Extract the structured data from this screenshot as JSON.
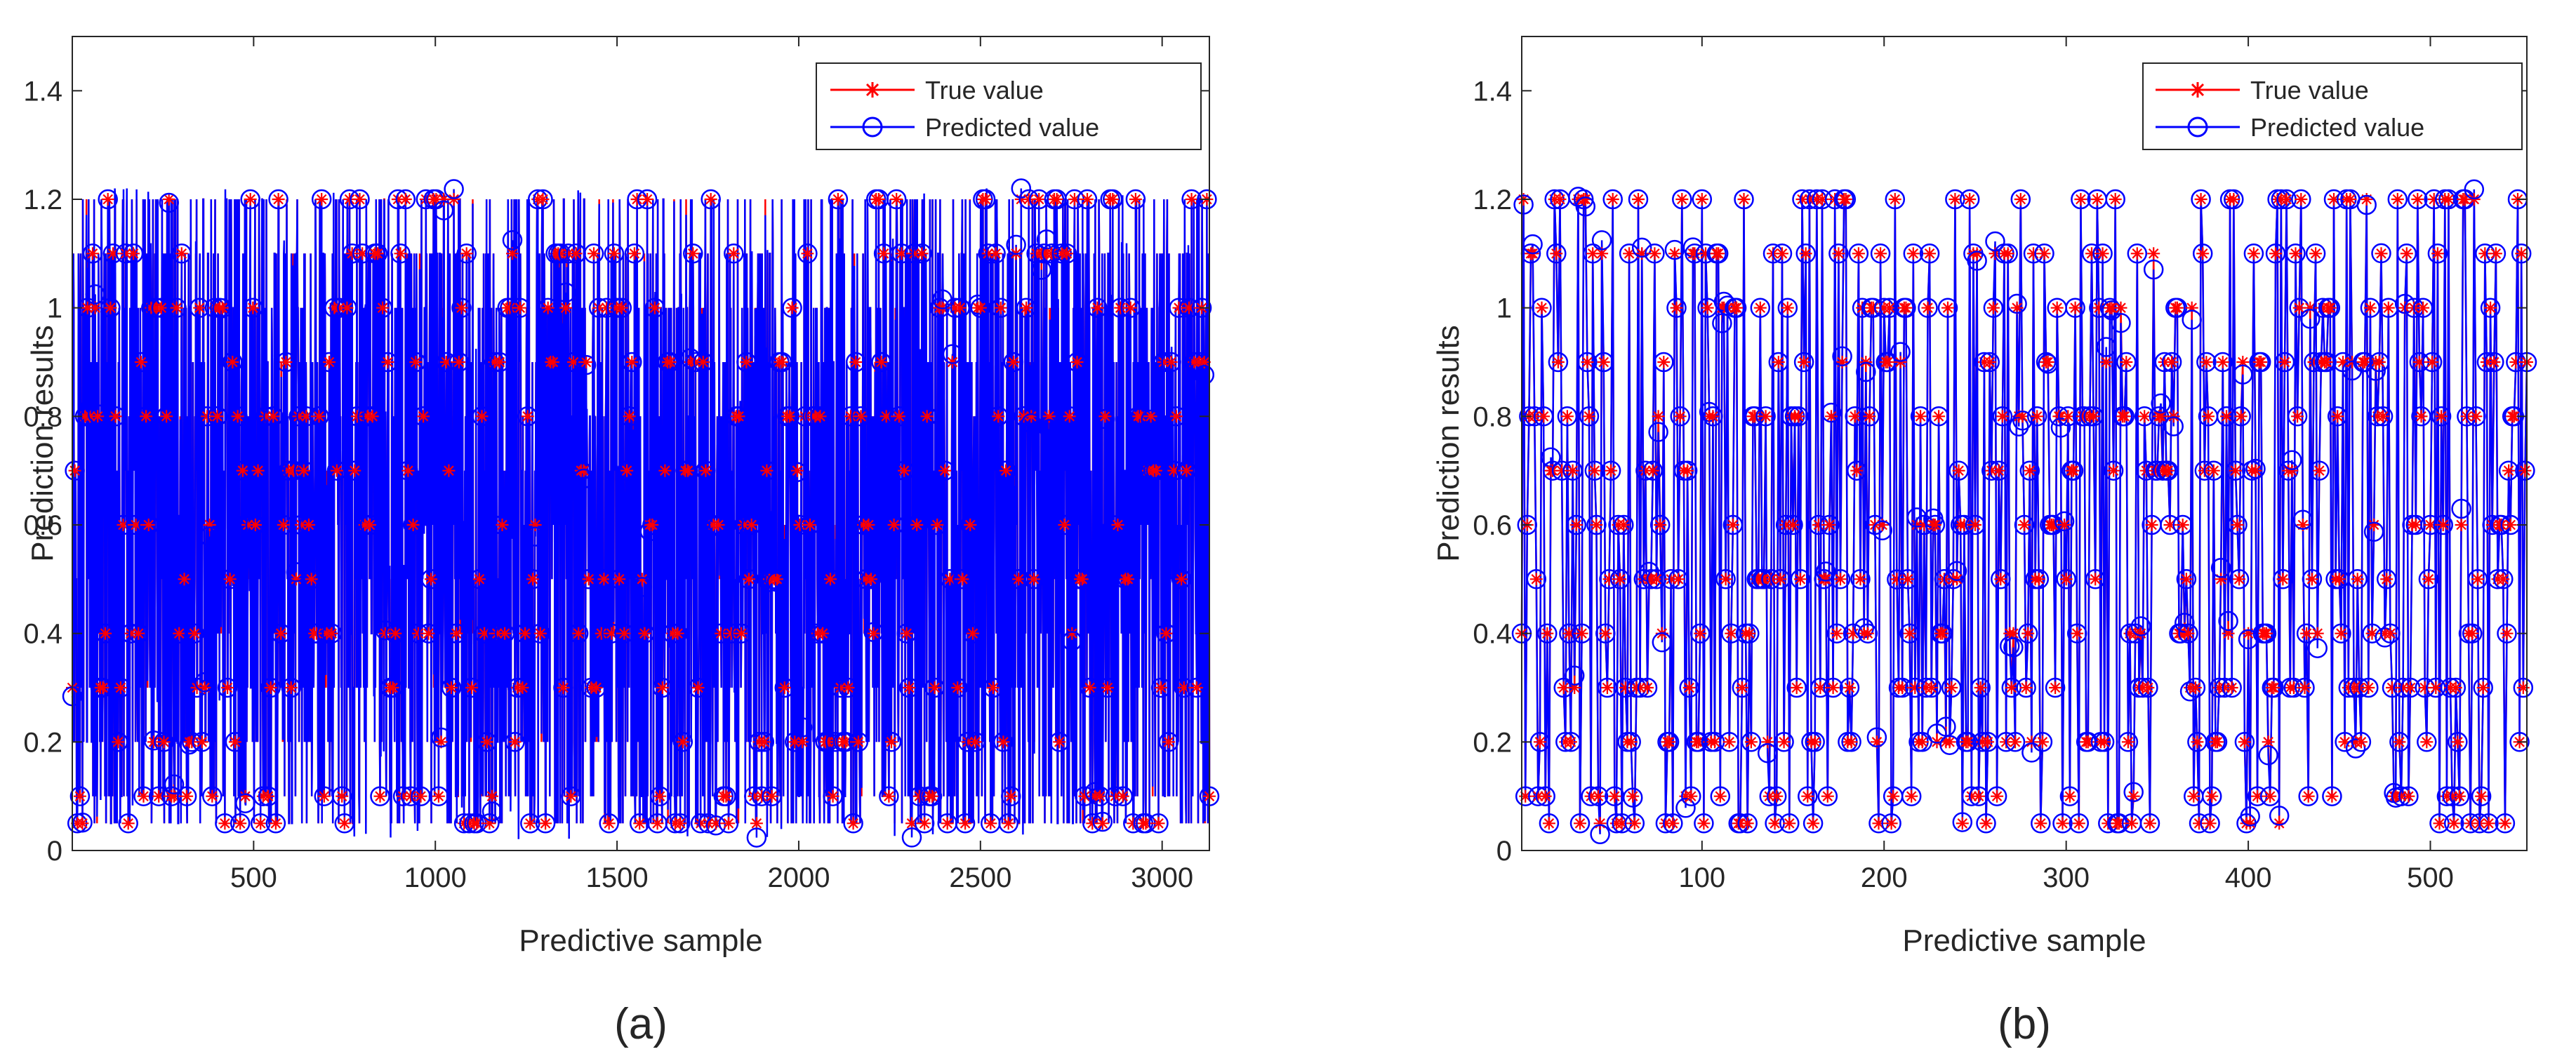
{
  "figure": {
    "panel_labels": [
      "(a)",
      "(b)"
    ]
  },
  "colors": {
    "true_series": "#ff0000",
    "predicted_series": "#0000ff",
    "axes": "#262626",
    "legend_border": "#262626"
  },
  "chart_data": [
    {
      "type": "line",
      "panel": "(a)",
      "xlabel": "Predictive sample",
      "ylabel": "Prediction results",
      "xlim": [
        1,
        3130
      ],
      "ylim": [
        0,
        1.5
      ],
      "xticks": [
        500,
        1000,
        1500,
        2000,
        2500,
        3000
      ],
      "xtick_labels": [
        "500",
        "1000",
        "1500",
        "2000",
        "2500",
        "3000"
      ],
      "yticks": [
        0,
        0.2,
        0.4,
        0.6,
        0.8,
        1.0,
        1.2,
        1.4
      ],
      "ytick_labels": [
        "0",
        "0.2",
        "0.4",
        "0.6",
        "0.8",
        "1",
        "1.2",
        "1.4"
      ],
      "grid": false,
      "legend_position": "top-right",
      "value_levels": [
        0.05,
        0.1,
        0.2,
        0.3,
        0.4,
        0.5,
        0.6,
        0.7,
        0.8,
        0.9,
        1.0,
        1.1,
        1.2
      ],
      "n_samples": 3130,
      "series": [
        {
          "name": "True value",
          "marker": "asterisk",
          "color": "#ff0000"
        },
        {
          "name": "Predicted value",
          "marker": "circle",
          "color": "#0000ff"
        }
      ]
    },
    {
      "type": "line",
      "panel": "(b)",
      "xlabel": "Predictive sample",
      "ylabel": "Prediction results",
      "xlim": [
        1,
        553
      ],
      "ylim": [
        0,
        1.5
      ],
      "xticks": [
        100,
        200,
        300,
        400,
        500
      ],
      "xtick_labels": [
        "100",
        "200",
        "300",
        "400",
        "500"
      ],
      "yticks": [
        0,
        0.2,
        0.4,
        0.6,
        0.8,
        1.0,
        1.2,
        1.4
      ],
      "ytick_labels": [
        "0",
        "0.2",
        "0.4",
        "0.6",
        "0.8",
        "1",
        "1.2",
        "1.4"
      ],
      "grid": false,
      "legend_position": "top-right",
      "value_levels": [
        0.05,
        0.1,
        0.2,
        0.3,
        0.4,
        0.5,
        0.6,
        0.7,
        0.8,
        0.9,
        1.0,
        1.1,
        1.2
      ],
      "n_samples": 553,
      "series": [
        {
          "name": "True value",
          "marker": "asterisk",
          "color": "#ff0000"
        },
        {
          "name": "Predicted value",
          "marker": "circle",
          "color": "#0000ff"
        }
      ]
    }
  ]
}
